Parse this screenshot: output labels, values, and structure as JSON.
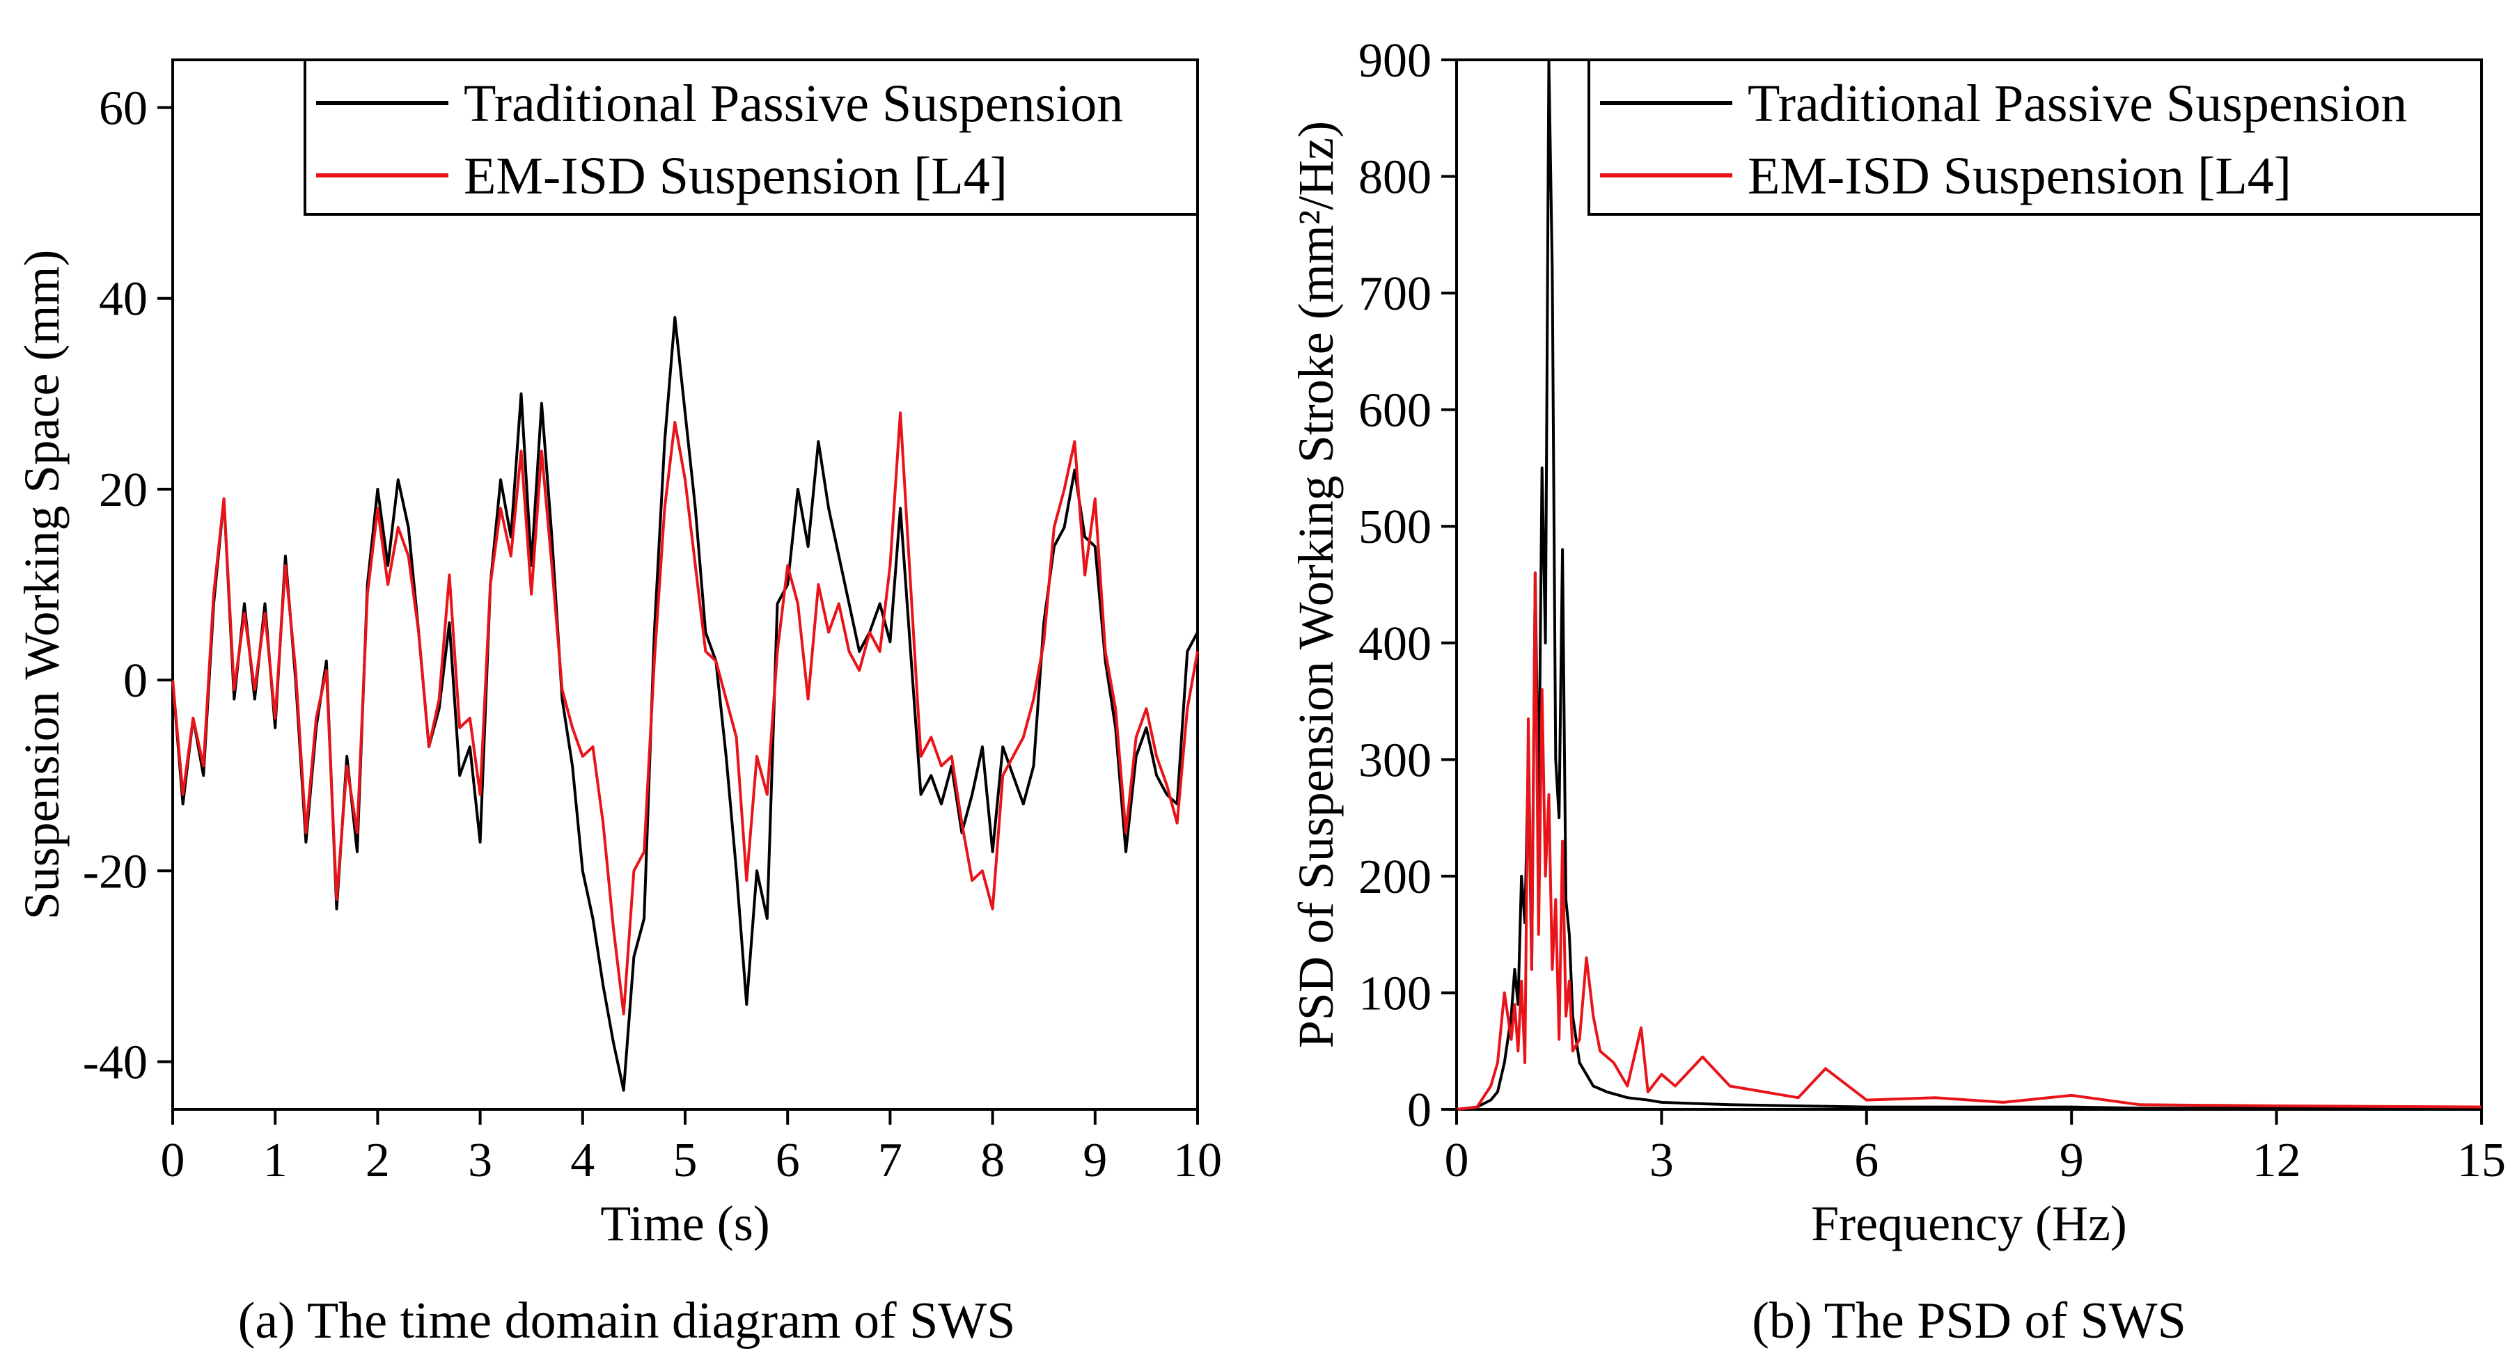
{
  "chart_data": [
    {
      "type": "line",
      "caption": "(a) The time domain diagram of SWS",
      "xlabel": "Time (s)",
      "ylabel": "Suspension Working Space (mm)",
      "xlim": [
        0,
        10
      ],
      "ylim": [
        -45,
        65
      ],
      "xticks": [
        0,
        1,
        2,
        3,
        4,
        5,
        6,
        7,
        8,
        9,
        10
      ],
      "yticks": [
        -40,
        -20,
        0,
        20,
        40,
        60
      ],
      "legend_position": "top-right",
      "series": [
        {
          "name": "Traditional Passive Suspension",
          "color": "#000000",
          "x": [
            0,
            0.1,
            0.2,
            0.3,
            0.4,
            0.5,
            0.6,
            0.7,
            0.8,
            0.9,
            1.0,
            1.1,
            1.2,
            1.3,
            1.4,
            1.5,
            1.6,
            1.7,
            1.8,
            1.9,
            2.0,
            2.1,
            2.2,
            2.3,
            2.4,
            2.5,
            2.6,
            2.7,
            2.8,
            2.9,
            3.0,
            3.1,
            3.2,
            3.3,
            3.4,
            3.5,
            3.6,
            3.7,
            3.8,
            3.9,
            4.0,
            4.1,
            4.2,
            4.3,
            4.4,
            4.5,
            4.6,
            4.7,
            4.8,
            4.9,
            5.0,
            5.1,
            5.2,
            5.3,
            5.4,
            5.5,
            5.6,
            5.7,
            5.8,
            5.9,
            6.0,
            6.1,
            6.2,
            6.3,
            6.4,
            6.5,
            6.6,
            6.7,
            6.8,
            6.9,
            7.0,
            7.1,
            7.2,
            7.3,
            7.4,
            7.5,
            7.6,
            7.7,
            7.8,
            7.9,
            8.0,
            8.1,
            8.2,
            8.3,
            8.4,
            8.5,
            8.6,
            8.7,
            8.8,
            8.9,
            9.0,
            9.1,
            9.2,
            9.3,
            9.4,
            9.5,
            9.6,
            9.7,
            9.8,
            9.9,
            10.0
          ],
          "values": [
            0,
            -13,
            -4,
            -10,
            8,
            19,
            -2,
            8,
            -2,
            8,
            -5,
            13,
            0,
            -17,
            -5,
            2,
            -24,
            -8,
            -18,
            10,
            20,
            12,
            21,
            16,
            5,
            -7,
            -3,
            6,
            -10,
            -7,
            -17,
            10,
            21,
            15,
            30,
            12,
            29,
            15,
            -2,
            -9,
            -20,
            -25,
            -32,
            -38,
            -43,
            -29,
            -25,
            5,
            25,
            38,
            28,
            18,
            5,
            2,
            -8,
            -20,
            -34,
            -20,
            -25,
            8,
            10,
            20,
            14,
            25,
            18,
            13,
            8,
            3,
            5,
            8,
            4,
            18,
            3,
            -12,
            -10,
            -13,
            -9,
            -16,
            -12,
            -7,
            -18,
            -7,
            -10,
            -13,
            -9,
            6,
            14,
            16,
            22,
            15,
            14,
            2,
            -5,
            -18,
            -8,
            -5,
            -10,
            -12,
            -13,
            3,
            5
          ]
        },
        {
          "name": "EM-ISD Suspension [L4]",
          "color": "#e8141a",
          "x": [
            0,
            0.1,
            0.2,
            0.3,
            0.4,
            0.5,
            0.6,
            0.7,
            0.8,
            0.9,
            1.0,
            1.1,
            1.2,
            1.3,
            1.4,
            1.5,
            1.6,
            1.7,
            1.8,
            1.9,
            2.0,
            2.1,
            2.2,
            2.3,
            2.4,
            2.5,
            2.6,
            2.7,
            2.8,
            2.9,
            3.0,
            3.1,
            3.2,
            3.3,
            3.4,
            3.5,
            3.6,
            3.7,
            3.8,
            3.9,
            4.0,
            4.1,
            4.2,
            4.3,
            4.4,
            4.5,
            4.6,
            4.7,
            4.8,
            4.9,
            5.0,
            5.1,
            5.2,
            5.3,
            5.4,
            5.5,
            5.6,
            5.7,
            5.8,
            5.9,
            6.0,
            6.1,
            6.2,
            6.3,
            6.4,
            6.5,
            6.6,
            6.7,
            6.8,
            6.9,
            7.0,
            7.1,
            7.2,
            7.3,
            7.4,
            7.5,
            7.6,
            7.7,
            7.8,
            7.9,
            8.0,
            8.1,
            8.2,
            8.3,
            8.4,
            8.5,
            8.6,
            8.7,
            8.8,
            8.9,
            9.0,
            9.1,
            9.2,
            9.3,
            9.4,
            9.5,
            9.6,
            9.7,
            9.8,
            9.9,
            10.0
          ],
          "values": [
            0,
            -12,
            -4,
            -9,
            9,
            19,
            -1,
            7,
            -1,
            7,
            -4,
            12,
            1,
            -16,
            -4,
            1,
            -23,
            -9,
            -16,
            9,
            18,
            10,
            16,
            13,
            5,
            -7,
            -2,
            11,
            -5,
            -4,
            -12,
            10,
            18,
            13,
            24,
            9,
            24,
            12,
            -1,
            -5,
            -8,
            -7,
            -15,
            -26,
            -35,
            -20,
            -18,
            2,
            18,
            27,
            21,
            12,
            3,
            2,
            -2,
            -6,
            -21,
            -8,
            -12,
            3,
            12,
            8,
            -2,
            10,
            5,
            8,
            3,
            1,
            5,
            3,
            12,
            28,
            10,
            -8,
            -6,
            -9,
            -8,
            -15,
            -21,
            -20,
            -24,
            -10,
            -8,
            -6,
            -2,
            4,
            16,
            20,
            25,
            11,
            19,
            3,
            -3,
            -16,
            -6,
            -3,
            -8,
            -11,
            -15,
            -3,
            3
          ]
        }
      ]
    },
    {
      "type": "line",
      "caption": "(b) The PSD of SWS",
      "xlabel": "Frequency (Hz)",
      "ylabel": "PSD of Suspension Working Stroke (mm²/Hz)",
      "xlim": [
        0,
        15
      ],
      "ylim": [
        0,
        900
      ],
      "xticks": [
        0,
        3,
        6,
        9,
        12,
        15
      ],
      "yticks": [
        0,
        100,
        200,
        300,
        400,
        500,
        600,
        700,
        800,
        900
      ],
      "legend_position": "top-right",
      "series": [
        {
          "name": "Traditional Passive Suspension",
          "color": "#000000",
          "x": [
            0,
            0.3,
            0.5,
            0.6,
            0.7,
            0.8,
            0.85,
            0.9,
            0.95,
            1.0,
            1.05,
            1.1,
            1.15,
            1.2,
            1.25,
            1.3,
            1.35,
            1.4,
            1.45,
            1.5,
            1.55,
            1.6,
            1.65,
            1.7,
            1.75,
            1.8,
            1.9,
            2.0,
            2.2,
            2.5,
            2.8,
            3.0,
            3.5,
            4.0,
            5.0,
            6.0,
            7.0,
            8.0,
            9.0,
            10.0,
            12.0,
            15.0
          ],
          "values": [
            0,
            2,
            8,
            15,
            40,
            80,
            120,
            90,
            200,
            160,
            300,
            120,
            460,
            250,
            550,
            400,
            900,
            720,
            300,
            250,
            480,
            180,
            150,
            80,
            60,
            40,
            30,
            20,
            15,
            10,
            8,
            6,
            5,
            4,
            3,
            2,
            2,
            2,
            2,
            1,
            1,
            1
          ]
        },
        {
          "name": "EM-ISD Suspension [L4]",
          "color": "#e8141a",
          "x": [
            0,
            0.3,
            0.5,
            0.6,
            0.7,
            0.8,
            0.85,
            0.9,
            0.95,
            1.0,
            1.05,
            1.1,
            1.15,
            1.2,
            1.25,
            1.3,
            1.35,
            1.4,
            1.45,
            1.5,
            1.55,
            1.6,
            1.65,
            1.7,
            1.8,
            1.9,
            2.0,
            2.1,
            2.3,
            2.5,
            2.7,
            2.8,
            3.0,
            3.2,
            3.6,
            4.0,
            4.5,
            5.0,
            5.4,
            6.0,
            7.0,
            8.0,
            9.0,
            10.0,
            12.0,
            15.0
          ],
          "values": [
            0,
            2,
            20,
            40,
            100,
            60,
            90,
            50,
            110,
            40,
            335,
            120,
            460,
            150,
            360,
            200,
            270,
            120,
            180,
            60,
            230,
            80,
            110,
            50,
            60,
            130,
            80,
            50,
            40,
            20,
            70,
            15,
            30,
            20,
            45,
            20,
            15,
            10,
            35,
            8,
            10,
            6,
            12,
            4,
            3,
            2
          ]
        }
      ]
    }
  ]
}
